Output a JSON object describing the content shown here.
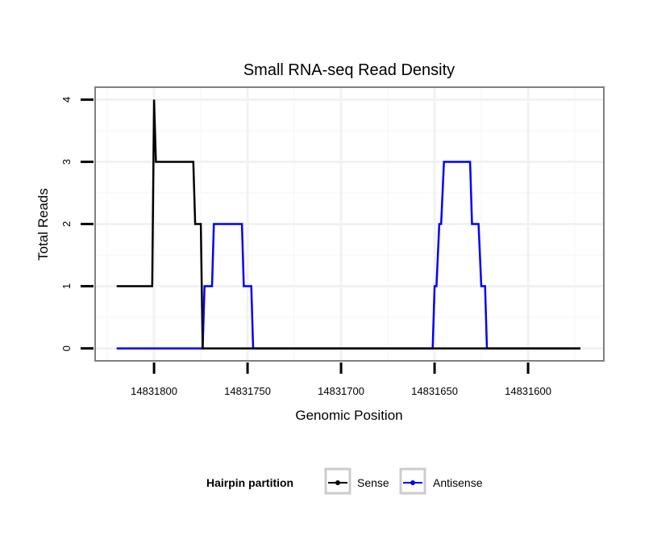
{
  "chart_data": {
    "type": "line",
    "title": "Small RNA-seq Read Density",
    "xlabel": "Genomic Position",
    "ylabel": "Total Reads",
    "xlim": [
      14831831.5,
      14831559.5
    ],
    "x_reversed": true,
    "ylim": [
      -0.2,
      4.2
    ],
    "xticks": [
      14831800,
      14831750,
      14831700,
      14831650,
      14831600
    ],
    "xtick_labels": [
      "14831800",
      "14831750",
      "14831700",
      "14831650",
      "14831600"
    ],
    "yticks": [
      0,
      1,
      2,
      3,
      4
    ],
    "ytick_labels": [
      "0",
      "1",
      "2",
      "3",
      "4"
    ],
    "grid": true,
    "legend": {
      "title": "Hairpin partition",
      "position": "bottom"
    },
    "series": [
      {
        "name": "Sense",
        "color": "#000000",
        "x": [
          14831820,
          14831801,
          14831800,
          14831799,
          14831779,
          14831778,
          14831775,
          14831774,
          14831572
        ],
        "y": [
          1,
          1,
          4,
          3,
          3,
          2,
          2,
          0,
          0
        ]
      },
      {
        "name": "Antisense",
        "color": "#0000ff",
        "x": [
          14831820,
          14831774,
          14831773,
          14831769,
          14831768,
          14831753,
          14831752,
          14831748,
          14831747,
          14831651,
          14831650,
          14831649,
          14831647.5,
          14831646.5,
          14831645,
          14831631,
          14831630,
          14831626.5,
          14831625,
          14831623,
          14831622,
          14831572
        ],
        "y": [
          0,
          0,
          1,
          1,
          2,
          2,
          1,
          1,
          0,
          0,
          1,
          1,
          2,
          2,
          3,
          3,
          2,
          2,
          1,
          1,
          0,
          0
        ]
      }
    ]
  }
}
